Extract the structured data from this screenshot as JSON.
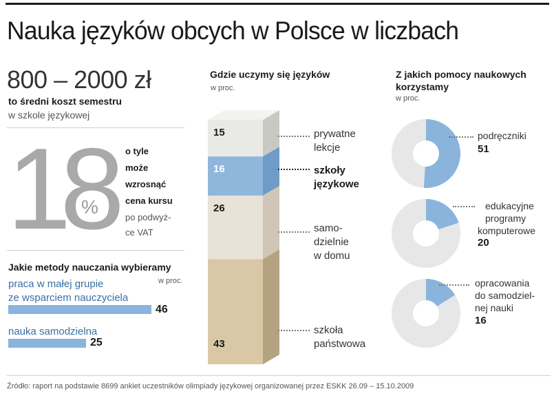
{
  "title": "Nauka języków obcych w Polsce w liczbach",
  "cost": {
    "range": "800 – 2000 zł",
    "line1": "to średni koszt semestru",
    "line2": "w szkole językowej"
  },
  "vat": {
    "number": "18",
    "percent": "%",
    "lines_bold": [
      "o tyle",
      "może",
      "wzrosnąć",
      "cena kursu"
    ],
    "lines_light": [
      "po podwyż-",
      "ce VAT"
    ]
  },
  "colors": {
    "blue": "#8ab4dc",
    "pie_grey": "#e7e7e7",
    "seg_top": "#e9e9e5",
    "seg_blue": "#8fb7dc",
    "seg_mid": "#e9e2d6",
    "seg_bottom": "#d9c7a6"
  },
  "chart_data": [
    {
      "type": "bar",
      "title": "Jakie metody nauczania wybieramy",
      "unit": "w proc.",
      "categories": [
        "praca w małej grupie ze wsparciem nauczyciela",
        "nauka samodzielna"
      ],
      "label_lines": [
        [
          "praca w małej grupie",
          "ze wsparciem nauczyciela"
        ],
        [
          "nauka samodzielna"
        ]
      ],
      "values": [
        46,
        25
      ]
    },
    {
      "type": "bar",
      "subtype": "stacked-column",
      "title": "Gdzie uczymy się języków",
      "unit": "w proc.",
      "categories": [
        "prywatne lekcje",
        "szkoły językowe",
        "samodzielnie w domu",
        "szkoła państwowa"
      ],
      "label_lines": [
        [
          "prywatne",
          "lekcje"
        ],
        [
          "szkoły",
          "językowe"
        ],
        [
          "samo-",
          "dzielnie",
          "w domu"
        ],
        [
          "szkoła",
          "państwowa"
        ]
      ],
      "values": [
        15,
        16,
        26,
        43
      ]
    },
    {
      "type": "pie",
      "title": "Z jakich pomocy naukowych korzystamy",
      "title_lines": [
        "Z jakich pomocy naukowych",
        "korzystamy"
      ],
      "unit": "w proc.",
      "items": [
        {
          "label": "podręczniki",
          "label_lines": [
            "podręczniki"
          ],
          "value": 51
        },
        {
          "label": "edukacyjne programy komputerowe",
          "label_lines": [
            "edukacyjne",
            "programy",
            "komputerowe"
          ],
          "value": 20
        },
        {
          "label": "opracowania do samodzielnej nauki",
          "label_lines": [
            "opracowania",
            "do samodziel-",
            "nej nauki"
          ],
          "value": 16
        }
      ]
    }
  ],
  "source": "Źródło: raport na podstawie 8699 ankiet uczestników olimpiady językowej organizowanej przez ESKK 26.09 – 15.10.2009"
}
